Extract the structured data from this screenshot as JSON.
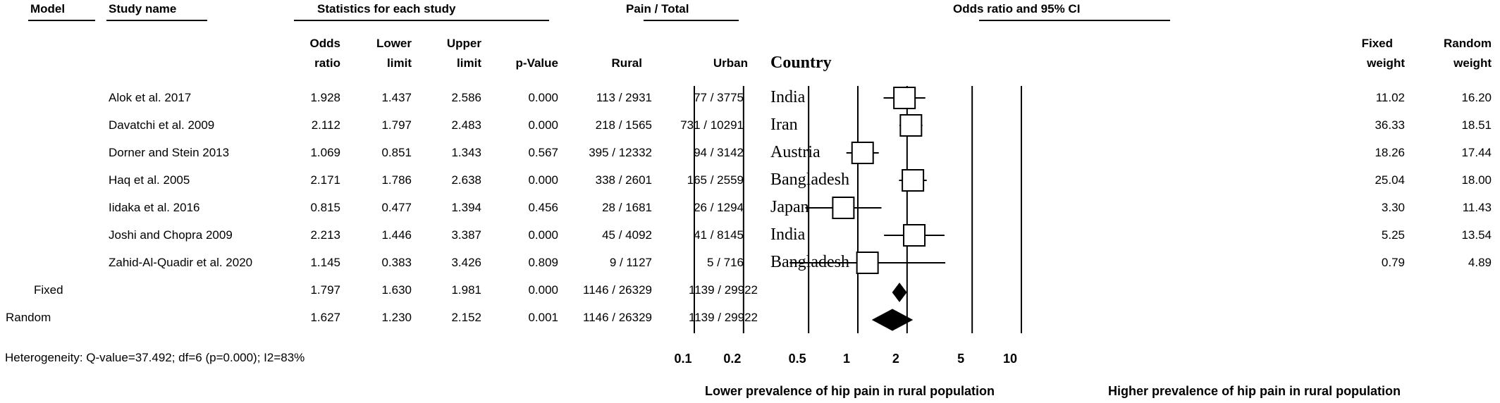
{
  "header": {
    "model": "Model",
    "study_name": "Study name",
    "statistics": "Statistics for each study",
    "pain_total": "Pain / Total",
    "odds_ratio_ci": "Odds ratio and 95% CI"
  },
  "columns": {
    "odds_ratio": [
      "Odds",
      "ratio"
    ],
    "lower_limit": [
      "Lower",
      "limit"
    ],
    "upper_limit": [
      "Upper",
      "limit"
    ],
    "p_value": "p-Value",
    "rural": "Rural",
    "urban": "Urban",
    "country": "Country",
    "fixed_weight": [
      "Fixed",
      "weight"
    ],
    "random_weight": [
      "Random",
      "weight"
    ]
  },
  "studies": [
    {
      "name": "Alok et al. 2017",
      "or": "1.928",
      "lower": "1.437",
      "upper": "2.586",
      "p": "0.000",
      "rural": "113 / 2931",
      "urban": "77 / 3775",
      "country": "India",
      "fixed": "11.02",
      "random": "16.20"
    },
    {
      "name": "Davatchi et al. 2009",
      "or": "2.112",
      "lower": "1.797",
      "upper": "2.483",
      "p": "0.000",
      "rural": "218 / 1565",
      "urban": "731 / 10291",
      "country": "Iran",
      "fixed": "36.33",
      "random": "18.51"
    },
    {
      "name": "Dorner and Stein 2013",
      "or": "1.069",
      "lower": "0.851",
      "upper": "1.343",
      "p": "0.567",
      "rural": "395 / 12332",
      "urban": "94 / 3142",
      "country": "Austria",
      "fixed": "18.26",
      "random": "17.44"
    },
    {
      "name": "Haq et al. 2005",
      "or": "2.171",
      "lower": "1.786",
      "upper": "2.638",
      "p": "0.000",
      "rural": "338 / 2601",
      "urban": "165 / 2559",
      "country": "Bangladesh",
      "fixed": "25.04",
      "random": "18.00"
    },
    {
      "name": "Iidaka  et al. 2016",
      "or": "0.815",
      "lower": "0.477",
      "upper": "1.394",
      "p": "0.456",
      "rural": "28 / 1681",
      "urban": "26 / 1294",
      "country": "Japan",
      "fixed": "3.30",
      "random": "11.43"
    },
    {
      "name": "Joshi and Chopra 2009",
      "or": "2.213",
      "lower": "1.446",
      "upper": "3.387",
      "p": "0.000",
      "rural": "45 / 4092",
      "urban": "41 / 8145",
      "country": "India",
      "fixed": "5.25",
      "random": "13.54"
    },
    {
      "name": "Zahid-Al-Quadir et al. 2020",
      "or": "1.145",
      "lower": "0.383",
      "upper": "3.426",
      "p": "0.809",
      "rural": "9 / 1127",
      "urban": "5 / 716",
      "country": "Bangladesh",
      "fixed": "0.79",
      "random": "4.89"
    }
  ],
  "pooled": [
    {
      "model": "Fixed",
      "or": "1.797",
      "lower": "1.630",
      "upper": "1.981",
      "p": "0.000",
      "rural": "1146 / 26329",
      "urban": "1139 / 29922"
    },
    {
      "model": "Random",
      "or": "1.627",
      "lower": "1.230",
      "upper": "2.152",
      "p": "0.001",
      "rural": "1146 / 26329",
      "urban": "1139 / 29922"
    }
  ],
  "heterogeneity": "Heterogeneity: Q-value=37.492; df=6 (p=0.000); I2=83%",
  "footer": {
    "lower_label": "Lower prevalence of hip pain in rural population",
    "higher_label": "Higher prevalence of hip pain in rural population"
  },
  "chart_data": {
    "type": "scatter",
    "title": "Odds ratio and 95% CI",
    "x_scale": "log",
    "xlim": [
      0.1,
      10
    ],
    "x_ticks": [
      0.1,
      0.2,
      0.5,
      1,
      2,
      5,
      10
    ],
    "x_tick_labels": [
      "0.1",
      "0.2",
      "0.5",
      "1",
      "2",
      "5",
      "10"
    ],
    "grid": "vertical lines at ticks",
    "series": [
      {
        "name": "Alok et al. 2017",
        "or": 1.928,
        "lower": 1.437,
        "upper": 2.586
      },
      {
        "name": "Davatchi et al. 2009",
        "or": 2.112,
        "lower": 1.797,
        "upper": 2.483
      },
      {
        "name": "Dorner and Stein 2013",
        "or": 1.069,
        "lower": 0.851,
        "upper": 1.343
      },
      {
        "name": "Haq et al. 2005",
        "or": 2.171,
        "lower": 1.786,
        "upper": 2.638
      },
      {
        "name": "Iidaka  et al. 2016",
        "or": 0.815,
        "lower": 0.477,
        "upper": 1.394
      },
      {
        "name": "Joshi and Chopra 2009",
        "or": 2.213,
        "lower": 1.446,
        "upper": 3.387
      },
      {
        "name": "Zahid-Al-Quadir et al. 2020",
        "or": 1.145,
        "lower": 0.383,
        "upper": 3.426
      }
    ],
    "pooled": [
      {
        "name": "Fixed",
        "or": 1.797,
        "lower": 1.63,
        "upper": 1.981
      },
      {
        "name": "Random",
        "or": 1.627,
        "lower": 1.23,
        "upper": 2.152
      }
    ]
  }
}
